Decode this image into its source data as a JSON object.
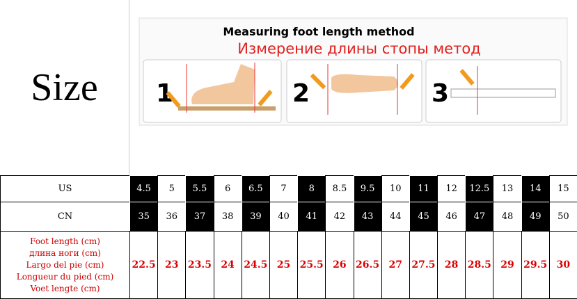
{
  "header": {
    "size_label": "Size",
    "diagram_title": "Measuring foot length method",
    "diagram_subtitle": "Измерение длины стопы метод",
    "steps": [
      "1",
      "2",
      "3"
    ]
  },
  "table": {
    "rows": [
      {
        "label": "US",
        "cells": [
          "4.5",
          "5",
          "5.5",
          "6",
          "6.5",
          "7",
          "8",
          "8.5",
          "9.5",
          "10",
          "11",
          "12",
          "12.5",
          "13",
          "14",
          "15"
        ]
      },
      {
        "label": "CN",
        "cells": [
          "35",
          "36",
          "37",
          "38",
          "39",
          "40",
          "41",
          "42",
          "43",
          "44",
          "45",
          "46",
          "47",
          "48",
          "49",
          "50"
        ]
      },
      {
        "label_lines": [
          "Foot length (cm)",
          "длина ноги (cm)",
          "Largo del pie (cm)",
          "Longueur du pied (cm)",
          "Voet lengte (cm)"
        ],
        "cells": [
          "22.5",
          "23",
          "23.5",
          "24",
          "24.5",
          "25",
          "25.5",
          "26",
          "26.5",
          "27",
          "27.5",
          "28",
          "28.5",
          "29",
          "29.5",
          "30"
        ]
      }
    ]
  }
}
